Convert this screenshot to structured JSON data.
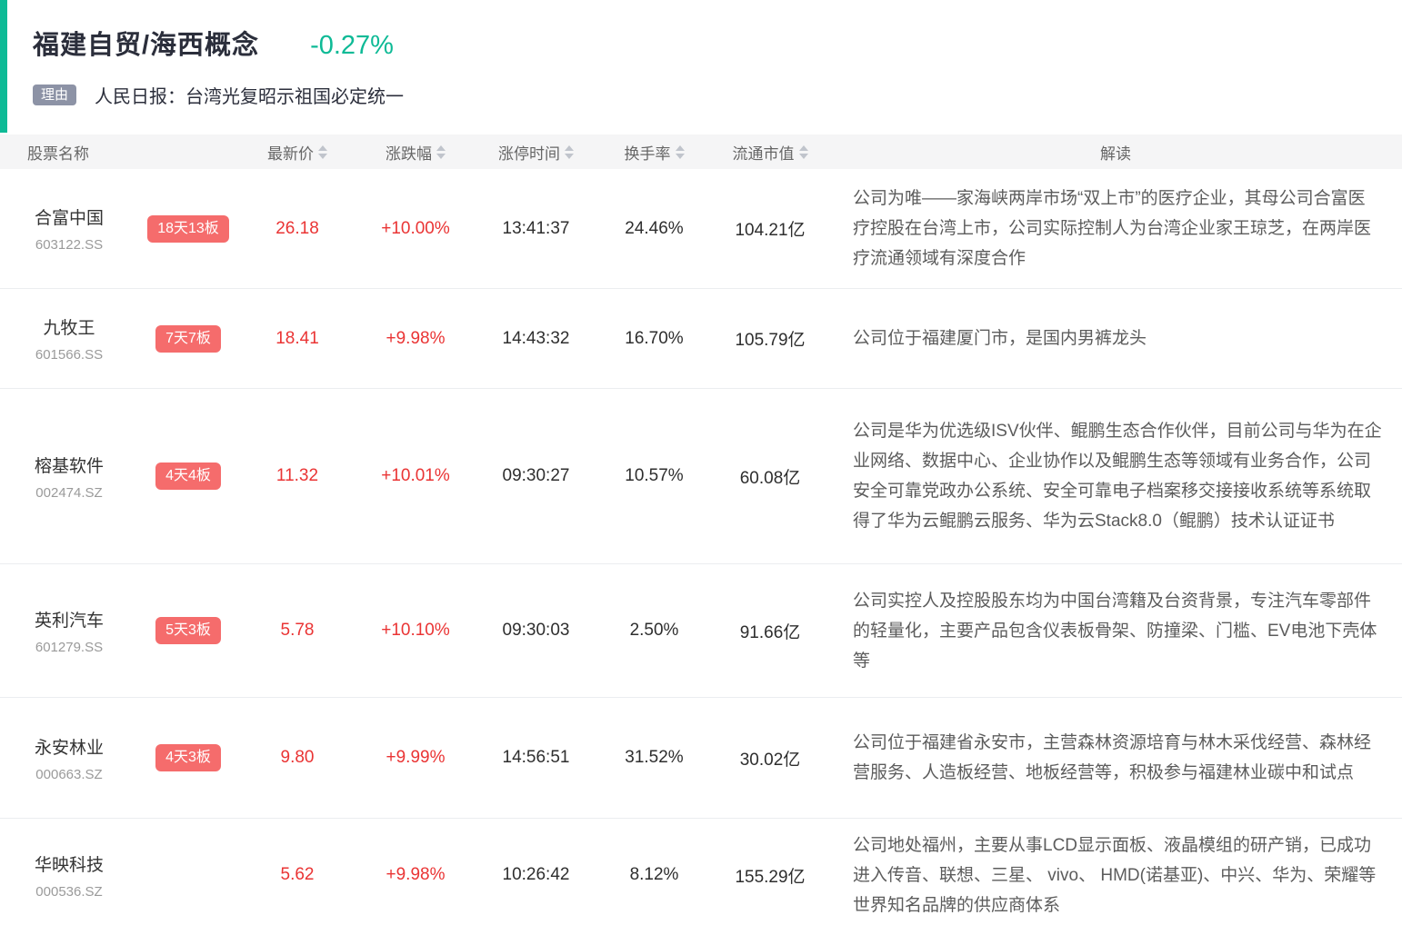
{
  "header": {
    "title": "福建自贸/海西概念",
    "change_percent": "-0.27%",
    "reason_badge": "理由",
    "reason_text": "人民日报：台湾光复昭示祖国必定统一"
  },
  "colors": {
    "accent_green": "#0eba96",
    "up_red": "#ea3434",
    "badge_red": "#f56c6c",
    "reason_badge_gray": "#8d93a6"
  },
  "table": {
    "columns": [
      "股票名称",
      "最新价",
      "涨跌幅",
      "涨停时间",
      "换手率",
      "流通市值",
      "解读"
    ],
    "rows": [
      {
        "name": "合富中国",
        "code": "603122.SS",
        "badge": "18天13板",
        "price": "26.18",
        "change": "+10.00%",
        "limit_time": "13:41:37",
        "turnover": "24.46%",
        "market_cap": "104.21亿",
        "comment": "公司为唯——家海峡两岸市场“双上市”的医疗企业，其母公司合富医疗控股在台湾上市，公司实际控制人为台湾企业家王琼芝，在两岸医疗流通领域有深度合作"
      },
      {
        "name": "九牧王",
        "code": "601566.SS",
        "badge": "7天7板",
        "price": "18.41",
        "change": "+9.98%",
        "limit_time": "14:43:32",
        "turnover": "16.70%",
        "market_cap": "105.79亿",
        "comment": "公司位于福建厦门市，是国内男裤龙头"
      },
      {
        "name": "榕基软件",
        "code": "002474.SZ",
        "badge": "4天4板",
        "price": "11.32",
        "change": "+10.01%",
        "limit_time": "09:30:27",
        "turnover": "10.57%",
        "market_cap": "60.08亿",
        "comment": "公司是华为优选级ISV伙伴、鲲鹏生态合作伙伴，目前公司与华为在企业网络、数据中心、企业协作以及鲲鹏生态等领域有业务合作，公司安全可靠党政办公系统、安全可靠电子档案移交接接收系统等系统取得了华为云鲲鹏云服务、华为云Stack8.0（鲲鹏）技术认证证书"
      },
      {
        "name": "英利汽车",
        "code": "601279.SS",
        "badge": "5天3板",
        "price": "5.78",
        "change": "+10.10%",
        "limit_time": "09:30:03",
        "turnover": "2.50%",
        "market_cap": "91.66亿",
        "comment": "公司实控人及控股股东均为中国台湾籍及台资背景，专注汽车零部件的轻量化，主要产品包含仪表板骨架、防撞梁、门槛、EV电池下壳体等"
      },
      {
        "name": "永安林业",
        "code": "000663.SZ",
        "badge": "4天3板",
        "price": "9.80",
        "change": "+9.99%",
        "limit_time": "14:56:51",
        "turnover": "31.52%",
        "market_cap": "30.02亿",
        "comment": "公司位于福建省永安市，主营森林资源培育与林木采伐经营、森林经营服务、人造板经营、地板经营等，积极参与福建林业碳中和试点"
      },
      {
        "name": "华映科技",
        "code": "000536.SZ",
        "badge": "",
        "price": "5.62",
        "change": "+9.98%",
        "limit_time": "10:26:42",
        "turnover": "8.12%",
        "market_cap": "155.29亿",
        "comment": "公司地处福州，主要从事LCD显示面板、液晶模组的研产销，已成功进入传音、联想、三星、 vivo、 HMD(诺基亚)、中兴、华为、荣耀等世界知名品牌的供应商体系"
      }
    ]
  }
}
